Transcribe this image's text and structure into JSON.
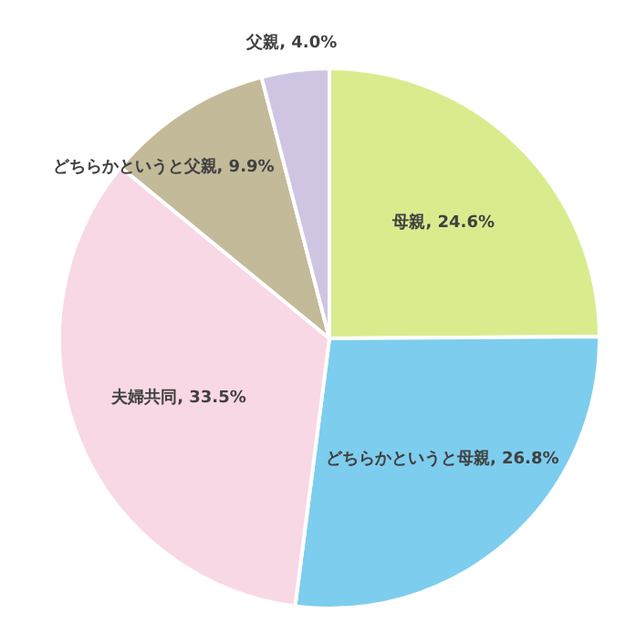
{
  "chart_data": {
    "type": "pie",
    "categories": [
      "母親",
      "どちらかというと母親",
      "夫婦共同",
      "どちらかというと父親",
      "父親"
    ],
    "values": [
      24.6,
      26.8,
      33.5,
      9.9,
      4.0
    ],
    "value_labels": [
      "24.6%",
      "26.8%",
      "33.5%",
      "9.9%",
      "4.0%"
    ],
    "colors": [
      "#d8ec8e",
      "#7dcdee",
      "#f8d8e4",
      "#c3ba9a",
      "#cfc5e2"
    ]
  }
}
